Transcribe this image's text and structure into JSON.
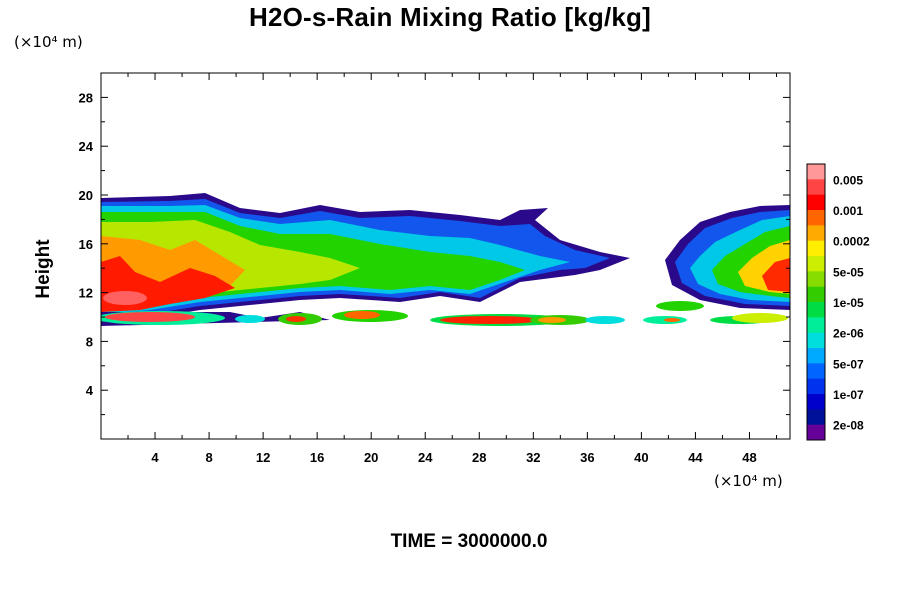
{
  "chart_data": {
    "type": "heatmap",
    "title": "H2O-s-Rain Mixing Ratio [kg/kg]",
    "xlabel": "",
    "ylabel": "Height",
    "x_unit": "(×10⁴ m)",
    "y_unit": "(×10⁴ m)",
    "xlim": [
      0,
      51
    ],
    "ylim": [
      0,
      30
    ],
    "x_ticks": [
      4,
      8,
      12,
      16,
      20,
      24,
      28,
      32,
      36,
      40,
      44,
      48
    ],
    "y_ticks": [
      4,
      8,
      12,
      16,
      20,
      24,
      28
    ],
    "colorbar": {
      "labels": [
        "0.005",
        "0.001",
        "0.0002",
        "5e-05",
        "1e-05",
        "2e-06",
        "5e-07",
        "1e-07",
        "2e-08"
      ],
      "colors": [
        "#ff9999",
        "#ff4444",
        "#ff0000",
        "#ff6600",
        "#ffaa00",
        "#ffee00",
        "#ccee00",
        "#88dd00",
        "#33cc00",
        "#00dd44",
        "#00ee99",
        "#00dddd",
        "#00aaff",
        "#0066ff",
        "#0033ee",
        "#0000cc",
        "#001199",
        "#660099"
      ]
    },
    "regions": [
      {
        "name": "upper anvil",
        "x": [
          0,
          38.5
        ],
        "y": [
          13,
          19.5
        ]
      },
      {
        "name": "right anvil",
        "x": [
          42,
          51
        ],
        "y": [
          11,
          19
        ]
      },
      {
        "name": "low rain band",
        "x": [
          0,
          51
        ],
        "y": [
          9.5,
          11
        ]
      },
      {
        "name": "intense core",
        "x": [
          0,
          12
        ],
        "y": [
          10,
          15
        ]
      }
    ],
    "time_label": "TIME = 3000000.0"
  }
}
